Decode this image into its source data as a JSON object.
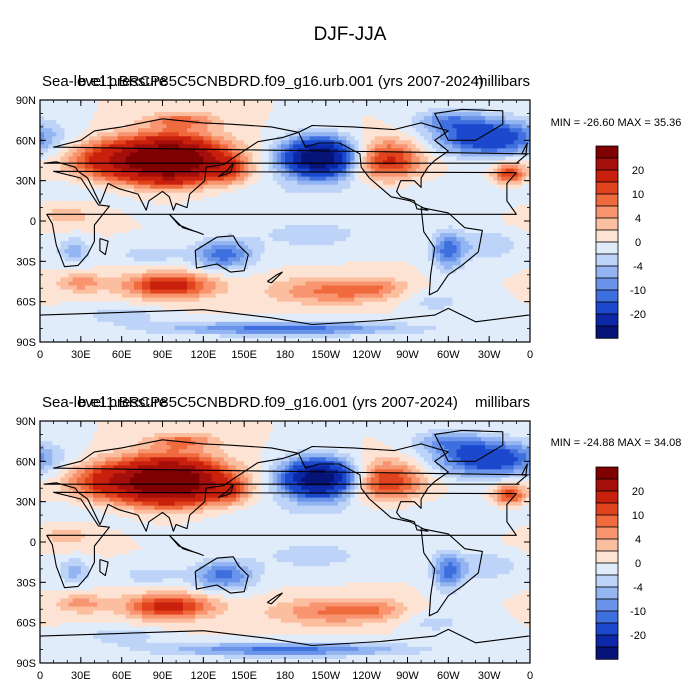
{
  "figure_title": "DJF-JJA",
  "units_label": "millibars",
  "colors": {
    "levels_descending": [
      "#7f0000",
      "#a50f0b",
      "#c9200d",
      "#e0431e",
      "#ef6a3c",
      "#f89470",
      "#fbbf9f",
      "#fde3d3",
      "#e1ecfb",
      "#bdd3f7",
      "#93b5f2",
      "#6a93ea",
      "#3e6fdf",
      "#1b48cc",
      "#0c27a8",
      "#061478"
    ],
    "tick_labels": [
      "20",
      "10",
      "4",
      "0",
      "-4",
      "-10",
      "-20"
    ]
  },
  "chart_data": [
    {
      "type": "heatmap",
      "title_left": "Sea-level pressure",
      "title_overlap": "b.e11.BRCP85C5CNBDRD.f09_g16.urb.001 (yrs 2007-2024)",
      "units": "millibars",
      "min_max_text": "MIN = -26.60 MAX =  35.36",
      "min": -26.6,
      "max": 35.36,
      "x_ticks": [
        "0",
        "30E",
        "60E",
        "90E",
        "120E",
        "150E",
        "180",
        "150W",
        "120W",
        "90W",
        "60W",
        "30W",
        "0"
      ],
      "y_ticks": [
        "90N",
        "60N",
        "30N",
        "0",
        "30S",
        "60S",
        "90S"
      ],
      "colorbar_ticks": [
        "20",
        "10",
        "4",
        "0",
        "-4",
        "-10",
        "-20"
      ]
    },
    {
      "type": "heatmap",
      "title_left": "Sea-level pressure",
      "title_overlap": "b.e11.BRCP85C5CNBDRD.f09_g16.001 (yrs 2007-2024)",
      "units": "millibars",
      "min_max_text": "MIN = -24.88 MAX =  34.08",
      "min": -24.88,
      "max": 34.08,
      "x_ticks": [
        "0",
        "30E",
        "60E",
        "90E",
        "120E",
        "150E",
        "180",
        "150W",
        "120W",
        "90W",
        "60W",
        "30W",
        "0"
      ],
      "y_ticks": [
        "90N",
        "60N",
        "30N",
        "0",
        "30S",
        "60S",
        "90S"
      ],
      "colorbar_ticks": [
        "20",
        "10",
        "4",
        "0",
        "-4",
        "-10",
        "-20"
      ]
    }
  ]
}
